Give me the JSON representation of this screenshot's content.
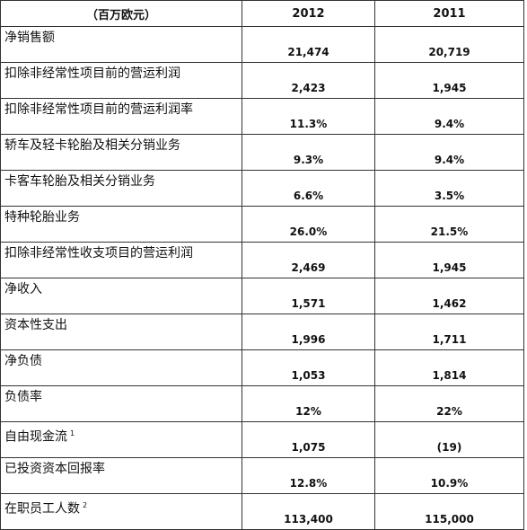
{
  "header": {
    "unit": "（百万欧元）",
    "year_2012": "2012",
    "year_2011": "2011"
  },
  "rows": [
    {
      "label": "净销售额",
      "note": "",
      "v2012": "21,474",
      "v2011": "20,719"
    },
    {
      "label": "扣除非经常性项目前的营运利润",
      "note": "",
      "v2012": "2,423",
      "v2011": "1,945"
    },
    {
      "label": "扣除非经常性项目前的营运利润率",
      "note": "",
      "v2012": "11.3%",
      "v2011": "9.4%"
    },
    {
      "label": "轿车及轻卡轮胎及相关分销业务",
      "note": "",
      "v2012": "9.3%",
      "v2011": "9.4%"
    },
    {
      "label": "卡客车轮胎及相关分销业务",
      "note": "",
      "v2012": "6.6%",
      "v2011": "3.5%"
    },
    {
      "label": "特种轮胎业务",
      "note": "",
      "v2012": "26.0%",
      "v2011": "21.5%"
    },
    {
      "label": "扣除非经常性收支项目的营运利润",
      "note": "",
      "v2012": "2,469",
      "v2011": "1,945"
    },
    {
      "label": "净收入",
      "note": "",
      "v2012": "1,571",
      "v2011": "1,462"
    },
    {
      "label": "资本性支出",
      "note": "",
      "v2012": "1,996",
      "v2011": "1,711"
    },
    {
      "label": "净负债",
      "note": "",
      "v2012": "1,053",
      "v2011": "1,814"
    },
    {
      "label": "负债率",
      "note": "",
      "v2012": "12%",
      "v2011": "22%"
    },
    {
      "label": "自由现金流",
      "note": "1",
      "v2012": "1,075",
      "v2011": "(19)"
    },
    {
      "label": "已投资资本回报率",
      "note": "",
      "v2012": "12.8%",
      "v2011": "10.9%"
    },
    {
      "label": "在职员工人数",
      "note": "2",
      "v2012": "113,400",
      "v2011": "115,000"
    }
  ]
}
